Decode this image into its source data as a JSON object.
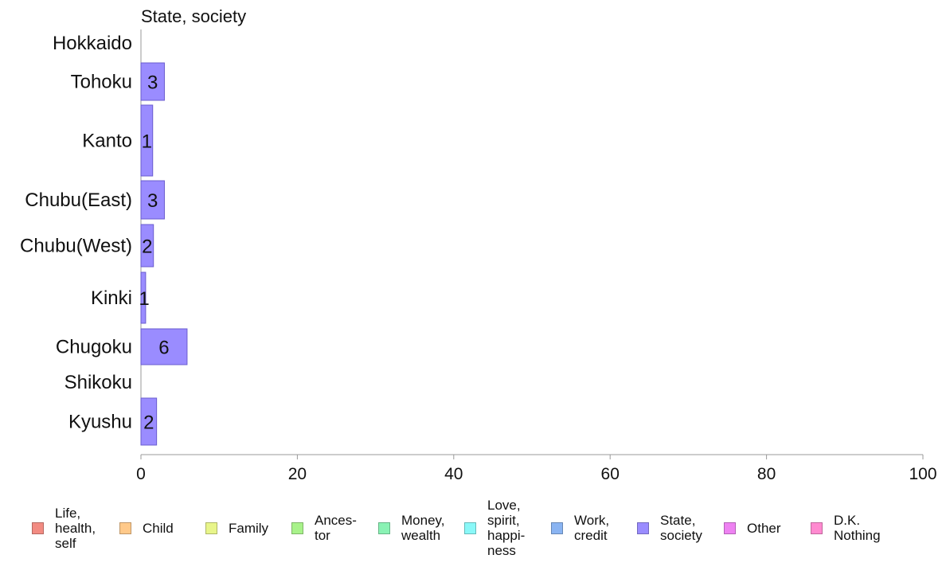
{
  "chart_data": {
    "type": "bar",
    "orientation": "horizontal",
    "title": "State, society",
    "categories": [
      "Hokkaido",
      "Tohoku",
      "Kanto",
      "Chubu(East)",
      "Chubu(West)",
      "Kinki",
      "Chugoku",
      "Shikoku",
      "Kyushu"
    ],
    "series": [
      {
        "name": "State, society",
        "values": [
          0,
          3,
          1.5,
          3,
          1.6,
          0.6,
          5.9,
          0,
          2
        ],
        "labels": [
          "",
          "3",
          "1",
          "3",
          "2",
          "1",
          "6",
          "",
          "2"
        ],
        "color": "#9a8cff"
      }
    ],
    "xlim": [
      0,
      100
    ],
    "xticks": [
      "0",
      "20",
      "40",
      "60",
      "80",
      "100"
    ],
    "grid": false,
    "legend_position": "bottom"
  },
  "legend": [
    {
      "label": "Life,\nhealth,\nself",
      "color": "#f28b82"
    },
    {
      "label": "Child",
      "color": "#ffc98a"
    },
    {
      "label": "Family",
      "color": "#e8f58a"
    },
    {
      "label": "Ances-\ntor",
      "color": "#a8f28a"
    },
    {
      "label": "Money,\nwealth",
      "color": "#8af2b4"
    },
    {
      "label": "Love,\nspirit,\nhappi-\nness",
      "color": "#8af8f8"
    },
    {
      "label": "Work,\ncredit",
      "color": "#8ab4f2"
    },
    {
      "label": "State,\nsociety",
      "color": "#9a8cff"
    },
    {
      "label": "Other",
      "color": "#ee82f2"
    },
    {
      "label": "D.K.\nNothing",
      "color": "#ff8ad0"
    }
  ]
}
